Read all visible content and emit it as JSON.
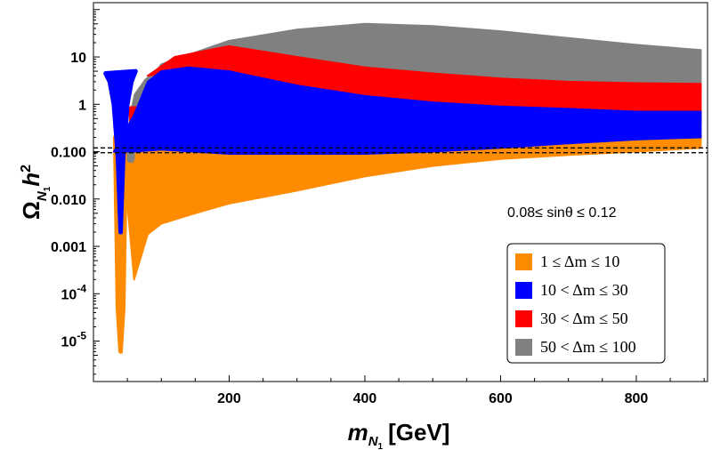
{
  "chart_data": {
    "type": "scatter",
    "title": "",
    "xlabel": {
      "main": "m",
      "sub": "N",
      "subsub": "1",
      "unit": "[GeV]"
    },
    "ylabel": {
      "main": "Ω",
      "sub": "N",
      "subsub": "1",
      "h": "h",
      "sup": "2"
    },
    "x_ticks": [
      {
        "value": 200,
        "label": "200"
      },
      {
        "value": 400,
        "label": "400"
      },
      {
        "value": 600,
        "label": "600"
      },
      {
        "value": 800,
        "label": "800"
      }
    ],
    "y_ticks": [
      {
        "value": 1e-05,
        "label": "10",
        "exp": "-5"
      },
      {
        "value": 0.0001,
        "label": "10",
        "exp": "-4"
      },
      {
        "value": 0.001,
        "label": "0.001"
      },
      {
        "value": 0.01,
        "label": "0.010"
      },
      {
        "value": 0.1,
        "label": "0.100"
      },
      {
        "value": 1,
        "label": "1"
      },
      {
        "value": 10,
        "label": "10"
      }
    ],
    "xlim": [
      0,
      905
    ],
    "ylim": [
      1.4e-06,
      140
    ],
    "yscale": "log",
    "reference_lines": [
      0.095,
      0.12
    ],
    "annotation": "0.08≤ sinθ ≤ 0.12",
    "legend_position": "bottom-right",
    "series": [
      {
        "name": "1 ≤ Δm ≤ 10",
        "color": "#ff8c00",
        "upper": [
          [
            40,
            0.3
          ],
          [
            60,
            0.25
          ],
          [
            100,
            0.2
          ],
          [
            200,
            0.1
          ],
          [
            300,
            0.1
          ],
          [
            400,
            0.1
          ],
          [
            500,
            0.11
          ],
          [
            600,
            0.14
          ],
          [
            700,
            0.17
          ],
          [
            800,
            0.2
          ],
          [
            895,
            0.25
          ]
        ],
        "lower": [
          [
            60,
            0.0002
          ],
          [
            80,
            0.0018
          ],
          [
            100,
            0.003
          ],
          [
            150,
            0.005
          ],
          [
            200,
            0.008
          ],
          [
            300,
            0.015
          ],
          [
            400,
            0.03
          ],
          [
            500,
            0.05
          ],
          [
            600,
            0.07
          ],
          [
            700,
            0.085
          ],
          [
            800,
            0.1
          ],
          [
            895,
            0.12
          ]
        ],
        "dip": [
          [
            32,
            0.2
          ],
          [
            36,
            5e-05
          ],
          [
            40,
            6e-06
          ],
          [
            44,
            5e-05
          ],
          [
            48,
            0.2
          ]
        ],
        "stem": [
          [
            52,
            0.2
          ],
          [
            55,
            0.004
          ],
          [
            58,
            0.2
          ]
        ]
      },
      {
        "name": "10 < Δm ≤ 30",
        "color": "#0000ff",
        "upper": [
          [
            30,
            0.1
          ],
          [
            60,
            0.6
          ],
          [
            80,
            3
          ],
          [
            100,
            5
          ],
          [
            140,
            6
          ],
          [
            200,
            5
          ],
          [
            300,
            2.5
          ],
          [
            400,
            1.5
          ],
          [
            500,
            1.1
          ],
          [
            600,
            0.9
          ],
          [
            700,
            0.8
          ],
          [
            800,
            0.7
          ],
          [
            895,
            0.7
          ]
        ],
        "lower": [
          [
            30,
            0.1
          ],
          [
            60,
            0.1
          ],
          [
            100,
            0.11
          ],
          [
            200,
            0.09
          ],
          [
            300,
            0.09
          ],
          [
            400,
            0.09
          ],
          [
            500,
            0.1
          ],
          [
            600,
            0.12
          ],
          [
            700,
            0.15
          ],
          [
            800,
            0.18
          ],
          [
            895,
            0.2
          ]
        ],
        "dip": [
          [
            18,
            4.5
          ],
          [
            24,
            3
          ],
          [
            30,
            1
          ],
          [
            36,
            0.08
          ],
          [
            40,
            0.002
          ],
          [
            44,
            0.08
          ],
          [
            50,
            1
          ],
          [
            56,
            3
          ],
          [
            62,
            5
          ]
        ]
      },
      {
        "name": "30 < Δm ≤ 50",
        "color": "#ff0000",
        "upper": [
          [
            80,
            4
          ],
          [
            120,
            10
          ],
          [
            200,
            17
          ],
          [
            300,
            10
          ],
          [
            400,
            6
          ],
          [
            500,
            4.5
          ],
          [
            600,
            3.5
          ],
          [
            700,
            3
          ],
          [
            800,
            2.8
          ],
          [
            895,
            2.7
          ]
        ],
        "lower": [
          [
            80,
            4
          ],
          [
            120,
            5
          ],
          [
            200,
            3.5
          ],
          [
            300,
            1.2
          ],
          [
            400,
            0.75
          ],
          [
            500,
            0.6
          ],
          [
            600,
            0.5
          ],
          [
            700,
            0.45
          ],
          [
            800,
            0.42
          ],
          [
            895,
            0.4
          ]
        ],
        "blob": [
          [
            55,
            0.8
          ],
          [
            58,
            0.3
          ],
          [
            62,
            0.8
          ]
        ]
      },
      {
        "name": "50 < Δm ≤ 100",
        "color": "#808080",
        "upper": [
          [
            60,
            1
          ],
          [
            100,
            7
          ],
          [
            200,
            22
          ],
          [
            300,
            38
          ],
          [
            400,
            50
          ],
          [
            500,
            45
          ],
          [
            600,
            35
          ],
          [
            700,
            25
          ],
          [
            800,
            18
          ],
          [
            895,
            14
          ]
        ],
        "lower": [
          [
            60,
            1
          ],
          [
            100,
            3
          ],
          [
            200,
            8
          ],
          [
            300,
            6
          ],
          [
            400,
            4
          ],
          [
            500,
            3
          ],
          [
            600,
            2.5
          ],
          [
            700,
            2.2
          ],
          [
            800,
            2
          ],
          [
            895,
            1.8
          ]
        ],
        "strand": [
          [
            55,
            0.07
          ],
          [
            58,
            0.5
          ],
          [
            65,
            1.5
          ],
          [
            80,
            3
          ],
          [
            100,
            5
          ],
          [
            120,
            7
          ]
        ]
      }
    ]
  }
}
